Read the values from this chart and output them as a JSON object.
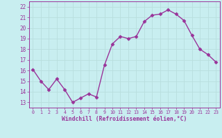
{
  "x": [
    0,
    1,
    2,
    3,
    4,
    5,
    6,
    7,
    8,
    9,
    10,
    11,
    12,
    13,
    14,
    15,
    16,
    17,
    18,
    19,
    20,
    21,
    22,
    23
  ],
  "y": [
    16.1,
    15.0,
    14.2,
    15.2,
    14.2,
    13.0,
    13.4,
    13.8,
    13.5,
    16.5,
    18.5,
    19.2,
    19.0,
    19.2,
    20.6,
    21.2,
    21.3,
    21.7,
    21.3,
    20.7,
    19.3,
    18.0,
    17.5,
    16.8
  ],
  "line_color": "#993399",
  "marker": "D",
  "markersize": 2.5,
  "linewidth": 1.0,
  "bg_color": "#c8eef0",
  "grid_color": "#aadddd",
  "tick_color": "#993399",
  "xlabel": "Windchill (Refroidissement éolien,°C)",
  "xlim": [
    -0.5,
    23.5
  ],
  "ylim": [
    12.5,
    22.5
  ],
  "yticks": [
    13,
    14,
    15,
    16,
    17,
    18,
    19,
    20,
    21,
    22
  ],
  "xticks": [
    0,
    1,
    2,
    3,
    4,
    5,
    6,
    7,
    8,
    9,
    10,
    11,
    12,
    13,
    14,
    15,
    16,
    17,
    18,
    19,
    20,
    21,
    22,
    23
  ],
  "font_color": "#993399"
}
